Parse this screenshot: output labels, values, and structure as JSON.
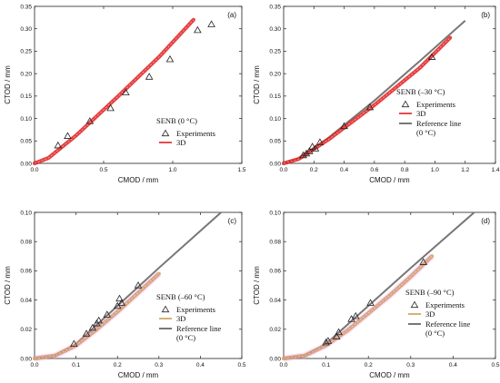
{
  "chart_data": [
    {
      "type": "scatter",
      "panel": "(a)",
      "xlabel": "CMOD / mm",
      "ylabel": "CTOD / mm",
      "xlim": [
        0,
        1.5
      ],
      "ylim": [
        0,
        0.35
      ],
      "xticks": [
        "0.0",
        "0.5",
        "1.0",
        "1.5"
      ],
      "yticks": [
        "0.00",
        "0.05",
        "0.10",
        "0.15",
        "0.20",
        "0.25",
        "0.30",
        "0.35"
      ],
      "legend_title": "SENB (0 °C)",
      "legend_position": "bottom-right",
      "series": [
        {
          "name": "Experiments",
          "kind": "triangle-markers",
          "x": [
            0.17,
            0.24,
            0.4,
            0.55,
            0.66,
            0.83,
            0.98,
            1.18,
            1.28
          ],
          "y": [
            0.04,
            0.061,
            0.094,
            0.123,
            0.158,
            0.193,
            0.232,
            0.297,
            0.31
          ]
        },
        {
          "name": "3D",
          "kind": "band",
          "color": "#e02020",
          "x": [
            0.0,
            0.1,
            0.3,
            0.6,
            0.9,
            1.15
          ],
          "y": [
            0.0,
            0.012,
            0.062,
            0.148,
            0.237,
            0.32
          ]
        }
      ]
    },
    {
      "type": "scatter",
      "panel": "(b)",
      "xlabel": "CMOD / mm",
      "ylabel": "CTOD / mm",
      "xlim": [
        0,
        1.4
      ],
      "ylim": [
        0,
        0.35
      ],
      "xticks": [
        "0.0",
        "0.2",
        "0.4",
        "0.6",
        "0.8",
        "1.0",
        "1.2",
        "1.4"
      ],
      "yticks": [
        "0.00",
        "0.05",
        "0.10",
        "0.15",
        "0.20",
        "0.25",
        "0.30",
        "0.35"
      ],
      "legend_title": "SENB (–30 °C)",
      "legend_position": "bottom-right",
      "series": [
        {
          "name": "Experiments",
          "kind": "triangle-markers",
          "x": [
            0.13,
            0.15,
            0.17,
            0.19,
            0.21,
            0.24,
            0.4,
            0.57,
            0.98
          ],
          "y": [
            0.018,
            0.022,
            0.027,
            0.037,
            0.033,
            0.047,
            0.083,
            0.125,
            0.237
          ]
        },
        {
          "name": "3D",
          "kind": "band",
          "color": "#e02020",
          "x": [
            0.0,
            0.1,
            0.3,
            0.6,
            0.9,
            1.1
          ],
          "y": [
            0.0,
            0.01,
            0.054,
            0.13,
            0.213,
            0.28
          ]
        },
        {
          "name": "Reference line",
          "extra": "(0 °C)",
          "kind": "line",
          "color": "#777777",
          "x": [
            0.0,
            0.1,
            0.3,
            0.6,
            0.9,
            1.2
          ],
          "y": [
            0.0,
            0.011,
            0.058,
            0.14,
            0.228,
            0.318
          ]
        }
      ]
    },
    {
      "type": "scatter",
      "panel": "(c)",
      "xlabel": "CMOD / mm",
      "ylabel": "CTOD / mm",
      "xlim": [
        0,
        0.5
      ],
      "ylim": [
        0,
        0.1
      ],
      "xticks": [
        "0.0",
        "0.1",
        "0.2",
        "0.3",
        "0.4",
        "0.5"
      ],
      "yticks": [
        "0.00",
        "0.02",
        "0.04",
        "0.06",
        "0.08",
        "0.10"
      ],
      "legend_title": "SENB (–60 °C)",
      "legend_position": "bottom-right",
      "series": [
        {
          "name": "Experiments",
          "kind": "triangle-markers",
          "x": [
            0.095,
            0.125,
            0.14,
            0.15,
            0.155,
            0.175,
            0.2,
            0.205,
            0.21,
            0.25
          ],
          "y": [
            0.01,
            0.017,
            0.021,
            0.024,
            0.026,
            0.03,
            0.036,
            0.041,
            0.038,
            0.05
          ]
        },
        {
          "name": "3D",
          "kind": "band",
          "color": "#c8a050",
          "x": [
            0.0,
            0.05,
            0.1,
            0.15,
            0.2,
            0.25,
            0.3
          ],
          "y": [
            0.0,
            0.002,
            0.009,
            0.02,
            0.032,
            0.045,
            0.058
          ]
        },
        {
          "name": "Reference line",
          "extra": "(0 °C)",
          "kind": "line",
          "color": "#777777",
          "x": [
            0.0,
            0.05,
            0.1,
            0.2,
            0.3,
            0.45
          ],
          "y": [
            0.0,
            0.002,
            0.01,
            0.036,
            0.062,
            0.1
          ]
        }
      ]
    },
    {
      "type": "scatter",
      "panel": "(d)",
      "xlabel": "CMOD / mm",
      "ylabel": "CTOD / mm",
      "xlim": [
        0,
        0.5
      ],
      "ylim": [
        0,
        0.1
      ],
      "xticks": [
        "0.0",
        "0.1",
        "0.2",
        "0.3",
        "0.4",
        "0.5"
      ],
      "yticks": [
        "0.00",
        "0.02",
        "0.04",
        "0.06",
        "0.08",
        "0.10"
      ],
      "legend_title": "SENB (–90 °C)",
      "legend_position": "bottom-right",
      "series": [
        {
          "name": "Experiments",
          "kind": "triangle-markers",
          "x": [
            0.1,
            0.105,
            0.125,
            0.13,
            0.16,
            0.17,
            0.205,
            0.33
          ],
          "y": [
            0.011,
            0.012,
            0.015,
            0.018,
            0.027,
            0.029,
            0.038,
            0.066
          ]
        },
        {
          "name": "3D",
          "kind": "band",
          "color": "#c8a050",
          "x": [
            0.0,
            0.05,
            0.1,
            0.15,
            0.2,
            0.25,
            0.3,
            0.35
          ],
          "y": [
            0.0,
            0.002,
            0.009,
            0.019,
            0.031,
            0.043,
            0.056,
            0.07
          ]
        },
        {
          "name": "Reference line",
          "extra": "(0 °C)",
          "kind": "line",
          "color": "#777777",
          "x": [
            0.0,
            0.05,
            0.1,
            0.2,
            0.3,
            0.45
          ],
          "y": [
            0.0,
            0.002,
            0.01,
            0.036,
            0.062,
            0.1
          ]
        }
      ]
    }
  ]
}
